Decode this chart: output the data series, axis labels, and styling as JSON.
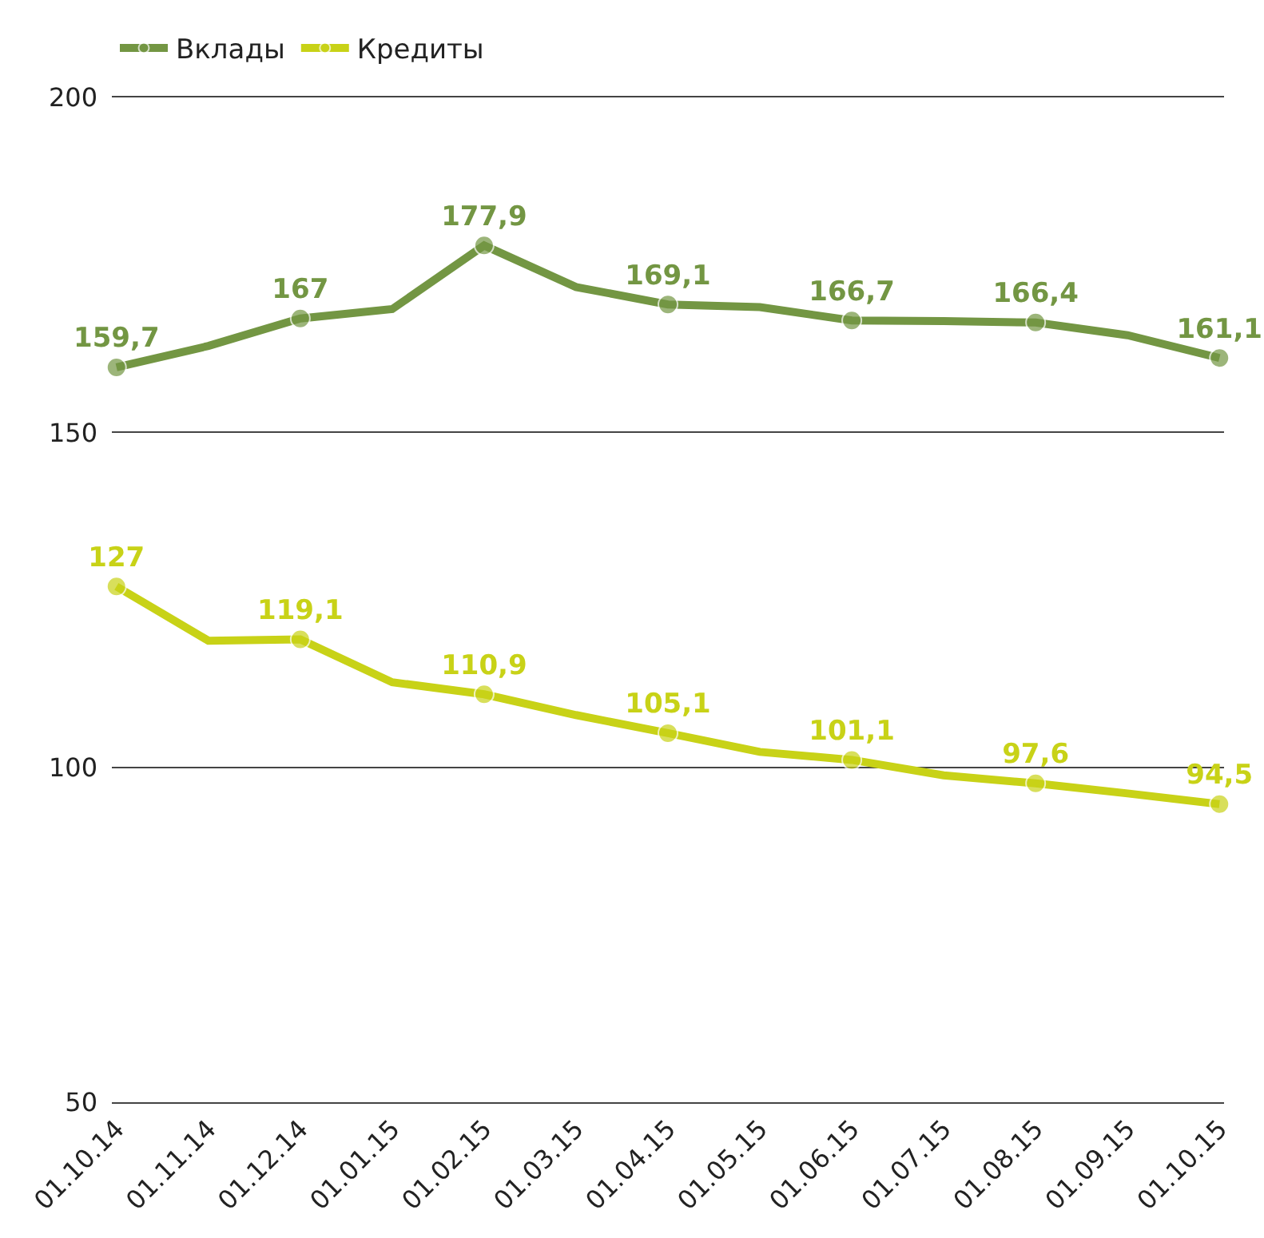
{
  "chart_data": {
    "type": "line",
    "categories": [
      "01.10.14",
      "01.11.14",
      "01.12.14",
      "01.01.15",
      "01.02.15",
      "01.03.15",
      "01.04.15",
      "01.05.15",
      "01.06.15",
      "01.07.15",
      "01.08.15",
      "01.09.15",
      "01.10.15"
    ],
    "series": [
      {
        "name": "Вклады",
        "color": "#739643",
        "values": [
          159.7,
          162.9,
          167,
          168.4,
          177.9,
          171.7,
          169.1,
          168.7,
          166.7,
          166.6,
          166.4,
          164.5,
          161.1
        ],
        "value_labels": [
          "159,7",
          null,
          "167",
          null,
          "177,9",
          null,
          "169,1",
          null,
          "166,7",
          null,
          "166,4",
          null,
          "161,1"
        ]
      },
      {
        "name": "Кредиты",
        "color": "#c8d217",
        "values": [
          127,
          118.9,
          119.1,
          112.7,
          110.9,
          107.8,
          105.1,
          102.3,
          101.1,
          98.8,
          97.6,
          96.1,
          94.5
        ],
        "value_labels": [
          "127",
          null,
          "119,1",
          null,
          "110,9",
          null,
          "105,1",
          null,
          "101,1",
          null,
          "97,6",
          null,
          "94,5"
        ]
      }
    ],
    "ylim": [
      50,
      200
    ],
    "yticks": [
      50,
      100,
      150,
      200
    ],
    "grid": "y",
    "legend": "top left",
    "marker": "circle",
    "line_style": "solid"
  }
}
